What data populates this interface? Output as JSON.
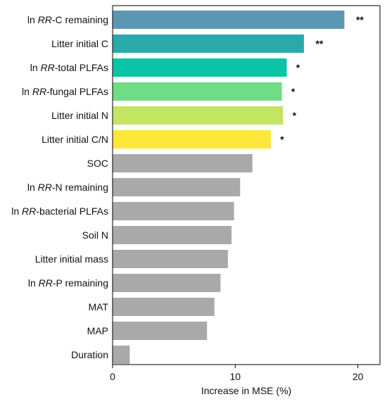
{
  "chart_data": {
    "type": "bar",
    "orientation": "horizontal",
    "xlabel": "Increase in MSE (%)",
    "ylabel": "",
    "xlim": [
      0,
      21.8
    ],
    "xticks": [
      0,
      10,
      20
    ],
    "grid": false,
    "categories": [
      {
        "prefix": "ln ",
        "italic": "RR",
        "suffix": "-C remaining"
      },
      {
        "prefix": "Litter initial C",
        "italic": "",
        "suffix": ""
      },
      {
        "prefix": "ln ",
        "italic": "RR",
        "suffix": "-total PLFAs"
      },
      {
        "prefix": "ln ",
        "italic": "RR",
        "suffix": "-fungal PLFAs"
      },
      {
        "prefix": "Litter initial N",
        "italic": "",
        "suffix": ""
      },
      {
        "prefix": "Litter initial C/N",
        "italic": "",
        "suffix": ""
      },
      {
        "prefix": "SOC",
        "italic": "",
        "suffix": ""
      },
      {
        "prefix": "ln ",
        "italic": "RR",
        "suffix": "-N remaining"
      },
      {
        "prefix": "ln ",
        "italic": "RR",
        "suffix": "-bacterial PLFAs"
      },
      {
        "prefix": "Soil N",
        "italic": "",
        "suffix": ""
      },
      {
        "prefix": "Litter initial mass",
        "italic": "",
        "suffix": ""
      },
      {
        "prefix": "ln ",
        "italic": "RR",
        "suffix": "-P remaining"
      },
      {
        "prefix": "MAT",
        "italic": "",
        "suffix": ""
      },
      {
        "prefix": "MAP",
        "italic": "",
        "suffix": ""
      },
      {
        "prefix": "Duration",
        "italic": "",
        "suffix": ""
      }
    ],
    "values": [
      18.9,
      15.6,
      14.2,
      13.8,
      13.9,
      12.9,
      11.4,
      10.4,
      9.9,
      9.7,
      9.4,
      8.8,
      8.3,
      7.7,
      1.4
    ],
    "significance": [
      "**",
      "**",
      "*",
      "*",
      "*",
      "*",
      "",
      "",
      "",
      "",
      "",
      "",
      "",
      "",
      ""
    ],
    "colors": [
      "#5b97b3",
      "#2aa9a9",
      "#0cc4a6",
      "#6fdc86",
      "#c3e562",
      "#fde73a",
      "#a9a9a9",
      "#a9a9a9",
      "#a9a9a9",
      "#a9a9a9",
      "#a9a9a9",
      "#a9a9a9",
      "#a9a9a9",
      "#a9a9a9",
      "#a9a9a9"
    ]
  }
}
